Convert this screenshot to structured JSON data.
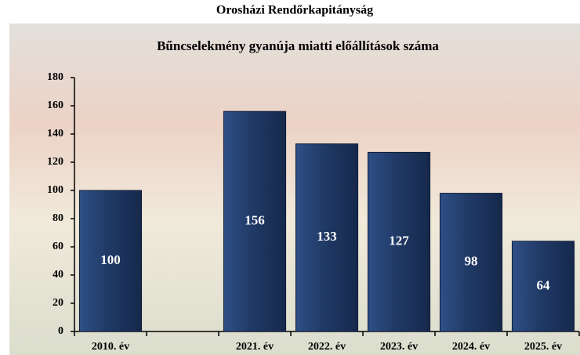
{
  "chart_data": {
    "type": "bar",
    "title": "Orosházi Rendőrkapitányság",
    "subtitle": "Bűncselekmény gyanúja miatti előállítások száma",
    "categories": [
      "2010. év",
      null,
      "2021. év",
      "2022. év",
      "2023. év",
      "2024. év",
      "2025. év"
    ],
    "values": [
      100,
      null,
      156,
      133,
      127,
      98,
      64
    ],
    "color": "#1f3864",
    "ylim": [
      0,
      180
    ],
    "yticks": [
      0,
      20,
      40,
      60,
      80,
      100,
      120,
      140,
      160,
      180
    ],
    "grid": false
  }
}
